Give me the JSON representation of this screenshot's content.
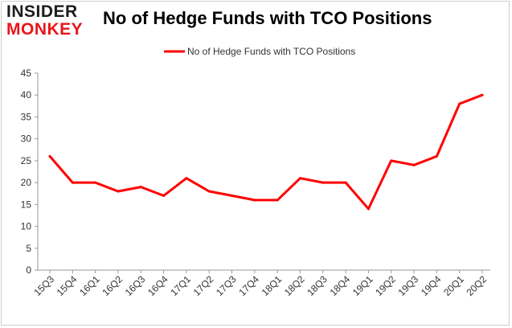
{
  "logo": {
    "line1": "INSIDER",
    "line2": "MONKEY"
  },
  "chart_data": {
    "type": "line",
    "title": "No of Hedge Funds with TCO Positions",
    "categories": [
      "15Q3",
      "15Q4",
      "16Q1",
      "16Q2",
      "16Q3",
      "16Q4",
      "17Q1",
      "17Q2",
      "17Q3",
      "17Q4",
      "18Q1",
      "18Q2",
      "18Q3",
      "18Q4",
      "19Q1",
      "19Q2",
      "19Q3",
      "19Q4",
      "20Q1",
      "20Q2"
    ],
    "series": [
      {
        "name": "No of Hedge Funds with TCO Positions",
        "values": [
          26,
          20,
          20,
          18,
          19,
          17,
          21,
          18,
          17,
          16,
          16,
          21,
          20,
          20,
          14,
          25,
          24,
          26,
          38,
          40
        ],
        "color": "#ff0000"
      }
    ],
    "ylim": [
      0,
      45
    ],
    "yticks": [
      0,
      5,
      10,
      15,
      20,
      25,
      30,
      35,
      40,
      45
    ],
    "xlabel": "",
    "ylabel": "",
    "grid": false,
    "legend_position": "top"
  },
  "colors": {
    "line": "#ff0000",
    "axis": "#999999",
    "text": "#333333",
    "brand_red": "#e8161b"
  }
}
